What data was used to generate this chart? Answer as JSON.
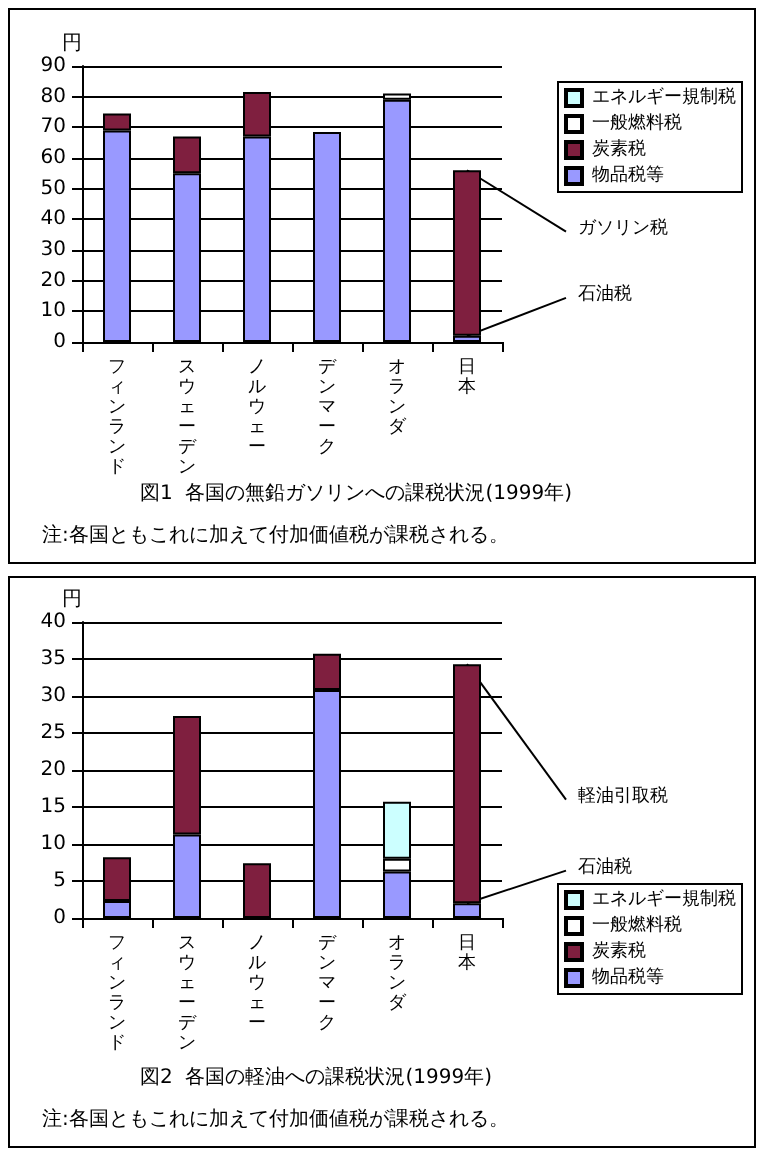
{
  "chart_data": [
    {
      "type": "bar",
      "stacked": true,
      "title": "図1  各国の無鉛ガソリンへの課税状況(1999年)",
      "ylabel": "円",
      "categories": [
        "フィンランド",
        "スウェーデン",
        "ノルウェー",
        "デンマーク",
        "オランダ",
        "日本"
      ],
      "series": [
        {
          "name": "物品税等",
          "color": "#9999ff",
          "values": [
            69,
            55,
            67,
            68.5,
            79,
            2
          ]
        },
        {
          "name": "炭素税",
          "color": "#7f1f3f",
          "values": [
            5.5,
            12,
            14.5,
            null,
            null,
            54
          ]
        },
        {
          "name": "一般燃料税",
          "color": "#ffffff",
          "values": [
            null,
            null,
            null,
            null,
            2,
            null
          ]
        },
        {
          "name": "エネルギー規制税",
          "color": "#ccffff",
          "values": [
            null,
            null,
            null,
            null,
            null,
            null
          ]
        }
      ],
      "ylim": [
        0,
        90
      ],
      "yticks": [
        0,
        10,
        20,
        30,
        40,
        50,
        60,
        70,
        80,
        90
      ],
      "grid": "y",
      "legend": "right",
      "annotations": [
        {
          "text": "ガソリン税",
          "x": "日本",
          "y": 56
        },
        {
          "text": "石油税",
          "x": "日本",
          "y": 2
        },
        "注:各国ともこれに加えて付加価値税が課税される。"
      ]
    },
    {
      "type": "bar",
      "stacked": true,
      "title": "図2  各国の軽油への課税状況(1999年)",
      "ylabel": "円",
      "categories": [
        "フィンランド",
        "スウェーデン",
        "ノルウェー",
        "デンマーク",
        "オランダ",
        "日本"
      ],
      "series": [
        {
          "name": "物品税等",
          "color": "#9999ff",
          "values": [
            2.3,
            11.3,
            null,
            30.8,
            6.3,
            2
          ]
        },
        {
          "name": "炭素税",
          "color": "#7f1f3f",
          "values": [
            5.9,
            16,
            7.4,
            4.9,
            null,
            32.3
          ]
        },
        {
          "name": "一般燃料税",
          "color": "#ffffff",
          "values": [
            null,
            null,
            null,
            null,
            1.7,
            null
          ]
        },
        {
          "name": "エネルギー規制税",
          "color": "#ccffff",
          "values": [
            null,
            null,
            null,
            null,
            7.7,
            null
          ]
        }
      ],
      "ylim": [
        0,
        40
      ],
      "yticks": [
        0,
        5,
        10,
        15,
        20,
        25,
        30,
        35,
        40
      ],
      "grid": "y",
      "legend": "bottom right",
      "annotations": [
        {
          "text": "軽油引取税",
          "x": "日本",
          "y": 34.3
        },
        {
          "text": "石油税",
          "x": "日本",
          "y": 2
        },
        "注:各国ともこれに加えて付加価値税が課税される。"
      ]
    }
  ]
}
